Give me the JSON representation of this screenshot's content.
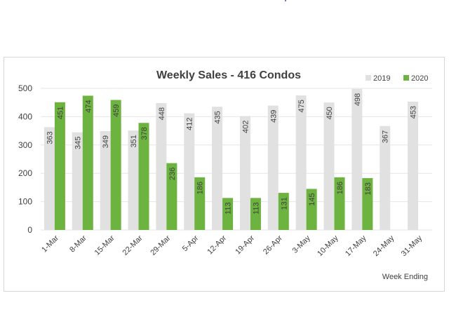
{
  "chart_data": {
    "type": "bar",
    "title": "Weekly Sales - 416 Condos",
    "xlabel": "Week Ending",
    "ylabel": "",
    "ylim": [
      0,
      500
    ],
    "yticks": [
      0,
      100,
      200,
      300,
      400,
      500
    ],
    "grid": true,
    "legend_position": "top-right",
    "categories": [
      "1-Mar",
      "8-Mar",
      "15-Mar",
      "22-Mar",
      "29-Mar",
      "5-Apr",
      "12-Apr",
      "19-Apr",
      "26-Apr",
      "3-May",
      "10-May",
      "17-May",
      "24-May",
      "31-May"
    ],
    "series": [
      {
        "name": "2019",
        "color": "#e1e1e1",
        "values": [
          363,
          345,
          349,
          351,
          448,
          412,
          435,
          402,
          439,
          475,
          450,
          498,
          367,
          453
        ]
      },
      {
        "name": "2020",
        "color": "#6db33f",
        "values": [
          451,
          474,
          459,
          378,
          236,
          186,
          113,
          113,
          131,
          145,
          186,
          183,
          null,
          null
        ]
      }
    ]
  }
}
